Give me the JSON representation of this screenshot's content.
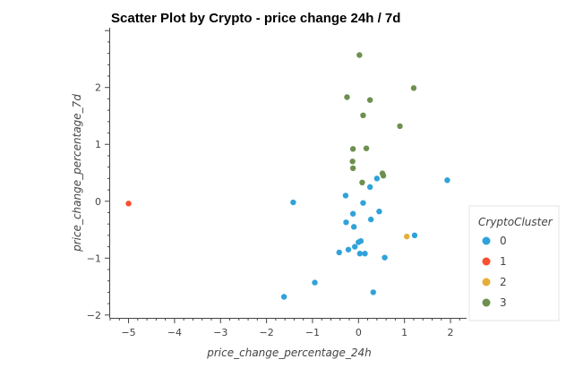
{
  "chart_data": {
    "type": "scatter",
    "title": "Scatter Plot by Crypto - price change 24h / 7d",
    "xlabel": "price_change_percentage_24h",
    "ylabel": "price_change_percentage_7d",
    "xlim": [
      -5.4,
      2.35
    ],
    "ylim": [
      -2.05,
      3.05
    ],
    "xticks": [
      -5,
      -4,
      -3,
      -2,
      -1,
      0,
      1,
      2
    ],
    "yticks": [
      -2,
      -1,
      0,
      1,
      2
    ],
    "grid": false,
    "legend": {
      "title": "CryptoCluster",
      "placement": "right"
    },
    "series": [
      {
        "name": "0",
        "color": "#30a2da",
        "points": [
          [
            -1.62,
            -1.68
          ],
          [
            -0.95,
            -1.43
          ],
          [
            0.32,
            -1.6
          ],
          [
            -1.42,
            -0.02
          ],
          [
            -0.28,
            0.1
          ],
          [
            -0.27,
            -0.37
          ],
          [
            -0.12,
            -0.22
          ],
          [
            0.1,
            -0.03
          ],
          [
            0.25,
            0.25
          ],
          [
            0.4,
            0.4
          ],
          [
            0.45,
            -0.18
          ],
          [
            -0.1,
            -0.45
          ],
          [
            0.27,
            -0.32
          ],
          [
            -0.42,
            -0.9
          ],
          [
            -0.22,
            -0.85
          ],
          [
            -0.08,
            -0.8
          ],
          [
            0.0,
            -0.72
          ],
          [
            0.05,
            -0.7
          ],
          [
            0.03,
            -0.92
          ],
          [
            0.14,
            -0.92
          ],
          [
            0.57,
            -0.99
          ],
          [
            1.22,
            -0.6
          ],
          [
            1.93,
            0.37
          ]
        ]
      },
      {
        "name": "1",
        "color": "#fc4f30",
        "points": [
          [
            -5.0,
            -0.04
          ]
        ]
      },
      {
        "name": "2",
        "color": "#e5ae38",
        "points": [
          [
            1.05,
            -0.62
          ]
        ]
      },
      {
        "name": "3",
        "color": "#6d904f",
        "points": [
          [
            0.02,
            2.57
          ],
          [
            1.2,
            1.99
          ],
          [
            -0.25,
            1.83
          ],
          [
            0.25,
            1.78
          ],
          [
            0.1,
            1.51
          ],
          [
            0.9,
            1.32
          ],
          [
            -0.12,
            0.92
          ],
          [
            0.17,
            0.93
          ],
          [
            -0.13,
            0.7
          ],
          [
            -0.12,
            0.58
          ],
          [
            0.52,
            0.49
          ],
          [
            0.54,
            0.45
          ],
          [
            0.08,
            0.33
          ]
        ]
      }
    ]
  }
}
